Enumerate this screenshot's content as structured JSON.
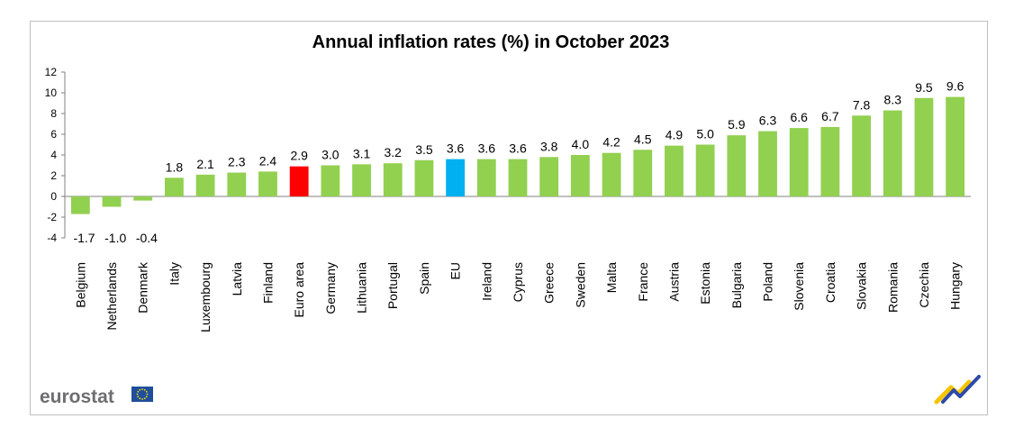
{
  "colors": {
    "bar_default": "#92d050",
    "bar_euro_area": "#ff0000",
    "bar_eu": "#00b0f0",
    "brand_text": "#6d6e70",
    "eu_flag_blue": "#1f4e9c",
    "eu_flag_stars": "#ffdd00"
  },
  "icons": {
    "brand_logo": "eurostat-logo",
    "eu_flag": "eu-flag-icon",
    "corner_mark": "eurostat-swoosh-icon"
  },
  "branding": {
    "name": "eurostat"
  },
  "chart_data": {
    "type": "bar",
    "title": "Annual inflation rates (%) in October 2023",
    "xlabel": "",
    "ylabel": "",
    "ylim": [
      -4,
      12
    ],
    "yticks": [
      -4,
      -2,
      0,
      2,
      4,
      6,
      8,
      10,
      12
    ],
    "grid": false,
    "categories": [
      "Belgium",
      "Netherlands",
      "Denmark",
      "Italy",
      "Luxembourg",
      "Latvia",
      "Finland",
      "Euro area",
      "Germany",
      "Lithuania",
      "Portugal",
      "Spain",
      "EU",
      "Ireland",
      "Cyprus",
      "Greece",
      "Sweden",
      "Malta",
      "France",
      "Austria",
      "Estonia",
      "Bulgaria",
      "Poland",
      "Slovenia",
      "Croatia",
      "Slovakia",
      "Romania",
      "Czechia",
      "Hungary"
    ],
    "values": [
      -1.7,
      -1.0,
      -0.4,
      1.8,
      2.1,
      2.3,
      2.4,
      2.9,
      3.0,
      3.1,
      3.2,
      3.5,
      3.6,
      3.6,
      3.6,
      3.8,
      4.0,
      4.2,
      4.5,
      4.9,
      5.0,
      5.9,
      6.3,
      6.6,
      6.7,
      7.8,
      8.3,
      9.5,
      9.6
    ],
    "value_labels": [
      "-1.7",
      "-1.0",
      "-0.4",
      "1.8",
      "2.1",
      "2.3",
      "2.4",
      "2.9",
      "3.0",
      "3.1",
      "3.2",
      "3.5",
      "3.6",
      "3.6",
      "3.6",
      "3.8",
      "4.0",
      "4.2",
      "4.5",
      "4.9",
      "5.0",
      "5.9",
      "6.3",
      "6.6",
      "6.7",
      "7.8",
      "8.3",
      "9.5",
      "9.6"
    ],
    "highlight": {
      "Euro area": "bar_euro_area",
      "EU": "bar_eu"
    }
  }
}
